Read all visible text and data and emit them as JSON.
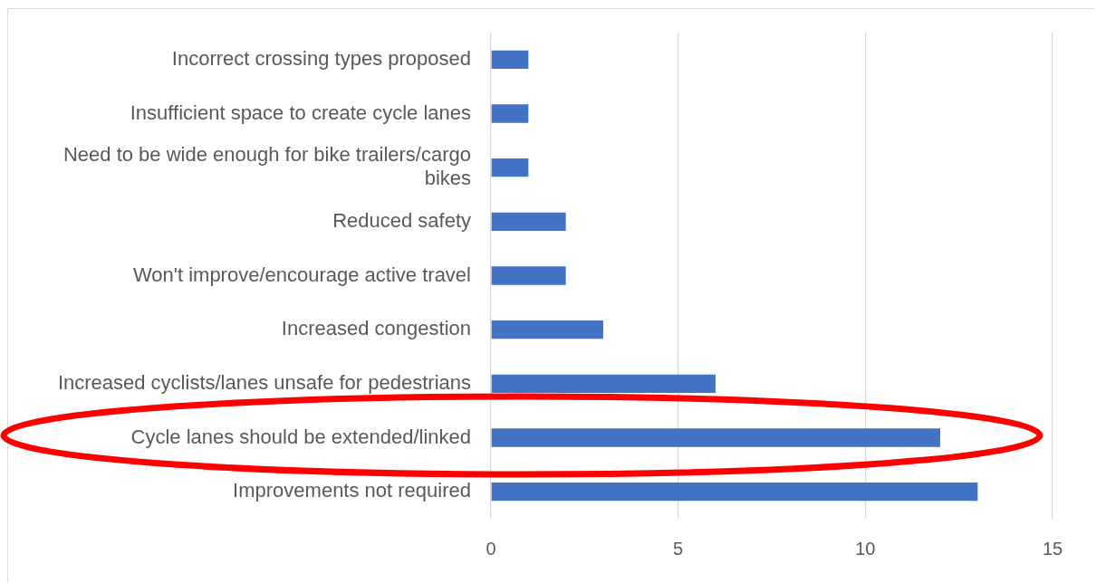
{
  "chart_data": {
    "type": "bar",
    "orientation": "horizontal",
    "categories": [
      "Incorrect crossing types proposed",
      "Insufficient space to create cycle lanes",
      "Need to be wide enough for bike trailers/cargo bikes",
      "Reduced safety",
      "Won't improve/encourage active travel",
      "Increased congestion",
      "Increased cyclists/lanes unsafe for pedestrians",
      "Cycle lanes should be extended/linked",
      "Improvements not required"
    ],
    "values": [
      1,
      1,
      1,
      2,
      2,
      3,
      6,
      12,
      13
    ],
    "color": "#4472c4",
    "xlim": [
      0,
      15
    ],
    "xticks": [
      0,
      5,
      10,
      15
    ],
    "grid": "x"
  }
}
